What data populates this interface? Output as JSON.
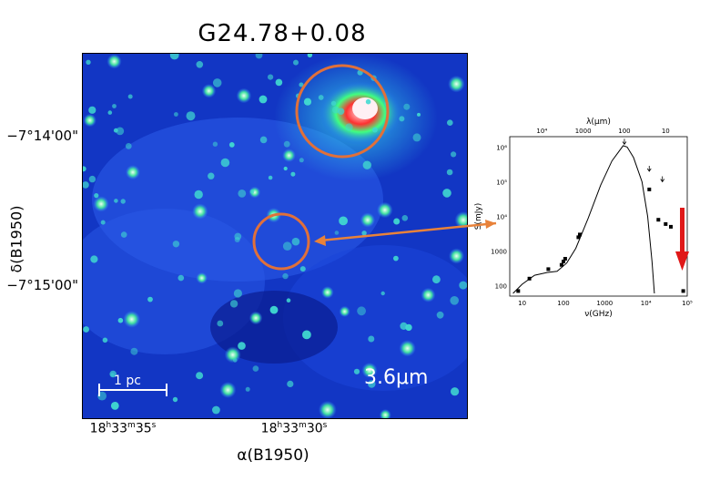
{
  "figure": {
    "title": "G24.78+0.08",
    "wavelength_label": "3.6μm",
    "scale_bar_label": "1 pc",
    "y_axis": {
      "label": "δ(B1950)",
      "ticks": [
        "−7°14'00\"",
        "−7°15'00\""
      ]
    },
    "x_axis": {
      "label": "α(B1950)",
      "ticks": [
        {
          "h": "18",
          "m": "33",
          "s": "35"
        },
        {
          "h": "18",
          "m": "33",
          "s": "30"
        }
      ]
    },
    "colors": {
      "map_bg": "#1238c8",
      "arrow_orange": "#e8823a",
      "circle_orange": "#e0703a",
      "red_arrow": "#e01818"
    }
  },
  "chart_data": {
    "type": "scatter",
    "title": "",
    "xlabel": "ν(GHz)",
    "ylabel": "S(mJy)",
    "top_xlabel": "λ(μm)",
    "x_scale": "log",
    "y_scale": "log",
    "xlim": [
      5,
      100000
    ],
    "ylim": [
      50,
      2000000
    ],
    "x_tick_labels": [
      "10",
      "100",
      "1000",
      "10⁴",
      "10⁵"
    ],
    "top_tick_labels": [
      "10⁴",
      "1000",
      "100",
      "10"
    ],
    "y_tick_labels": [
      "100",
      "1000",
      "10⁴",
      "10⁵",
      "10⁶"
    ],
    "points": [
      {
        "x": 8,
        "y": 70
      },
      {
        "x": 15,
        "y": 160
      },
      {
        "x": 43,
        "y": 300
      },
      {
        "x": 90,
        "y": 400
      },
      {
        "x": 100,
        "y": 500
      },
      {
        "x": 110,
        "y": 600
      },
      {
        "x": 230,
        "y": 2500
      },
      {
        "x": 250,
        "y": 3000
      },
      {
        "x": 12000,
        "y": 60000
      },
      {
        "x": 20000,
        "y": 8000
      },
      {
        "x": 30000,
        "y": 6000
      },
      {
        "x": 40000,
        "y": 5000
      },
      {
        "x": 80000,
        "y": 70
      }
    ],
    "upper_limits": [
      {
        "x": 3000,
        "y": 1200000
      },
      {
        "x": 12000,
        "y": 200000
      },
      {
        "x": 25000,
        "y": 100000
      }
    ]
  }
}
